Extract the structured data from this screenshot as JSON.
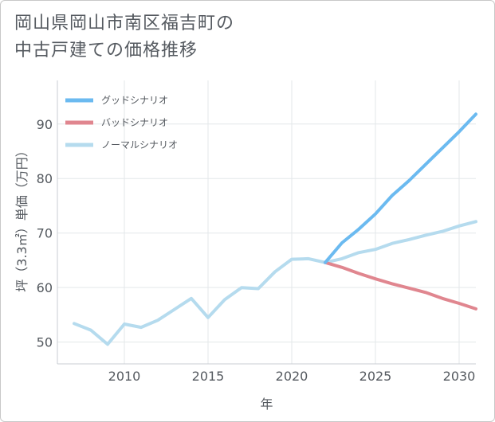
{
  "title_lines": [
    "岡山県岡山市南区福吉町の",
    "中古戸建ての価格推移"
  ],
  "chart_data": {
    "type": "line",
    "xlabel": "年",
    "ylabel": "坪（3.3㎡）単価（万円）",
    "xlim": [
      2006,
      2031
    ],
    "ylim": [
      46,
      98
    ],
    "xticks": [
      2010,
      2015,
      2020,
      2025,
      2030
    ],
    "yticks": [
      50,
      60,
      70,
      80,
      90
    ],
    "grid": true,
    "legend_position": "top-left",
    "series": [
      {
        "name": "グッドシナリオ",
        "color": "#6bbaf0",
        "x": [
          2022,
          2023,
          2024,
          2025,
          2026,
          2027,
          2028,
          2029,
          2030,
          2031
        ],
        "values": [
          64.6,
          68.2,
          70.7,
          73.5,
          76.9,
          79.6,
          82.6,
          85.6,
          88.6,
          91.8
        ]
      },
      {
        "name": "バッドシナリオ",
        "color": "#e0868f",
        "x": [
          2022,
          2023,
          2024,
          2025,
          2026,
          2027,
          2028,
          2029,
          2030,
          2031
        ],
        "values": [
          64.6,
          63.7,
          62.6,
          61.6,
          60.7,
          59.9,
          59.1,
          58.0,
          57.1,
          56.1
        ]
      },
      {
        "name": "ノーマルシナリオ",
        "color": "#b5dbee",
        "x": [
          2007,
          2008,
          2009,
          2010,
          2011,
          2012,
          2013,
          2014,
          2015,
          2016,
          2017,
          2018,
          2019,
          2020,
          2021,
          2022,
          2023,
          2024,
          2025,
          2026,
          2027,
          2028,
          2029,
          2030,
          2031
        ],
        "values": [
          53.4,
          52.2,
          49.6,
          53.3,
          52.7,
          54.0,
          56.0,
          58.0,
          54.5,
          57.8,
          60.0,
          59.8,
          62.9,
          65.2,
          65.3,
          64.6,
          65.3,
          66.4,
          67.0,
          68.1,
          68.8,
          69.6,
          70.3,
          71.3,
          72.1
        ]
      }
    ]
  }
}
